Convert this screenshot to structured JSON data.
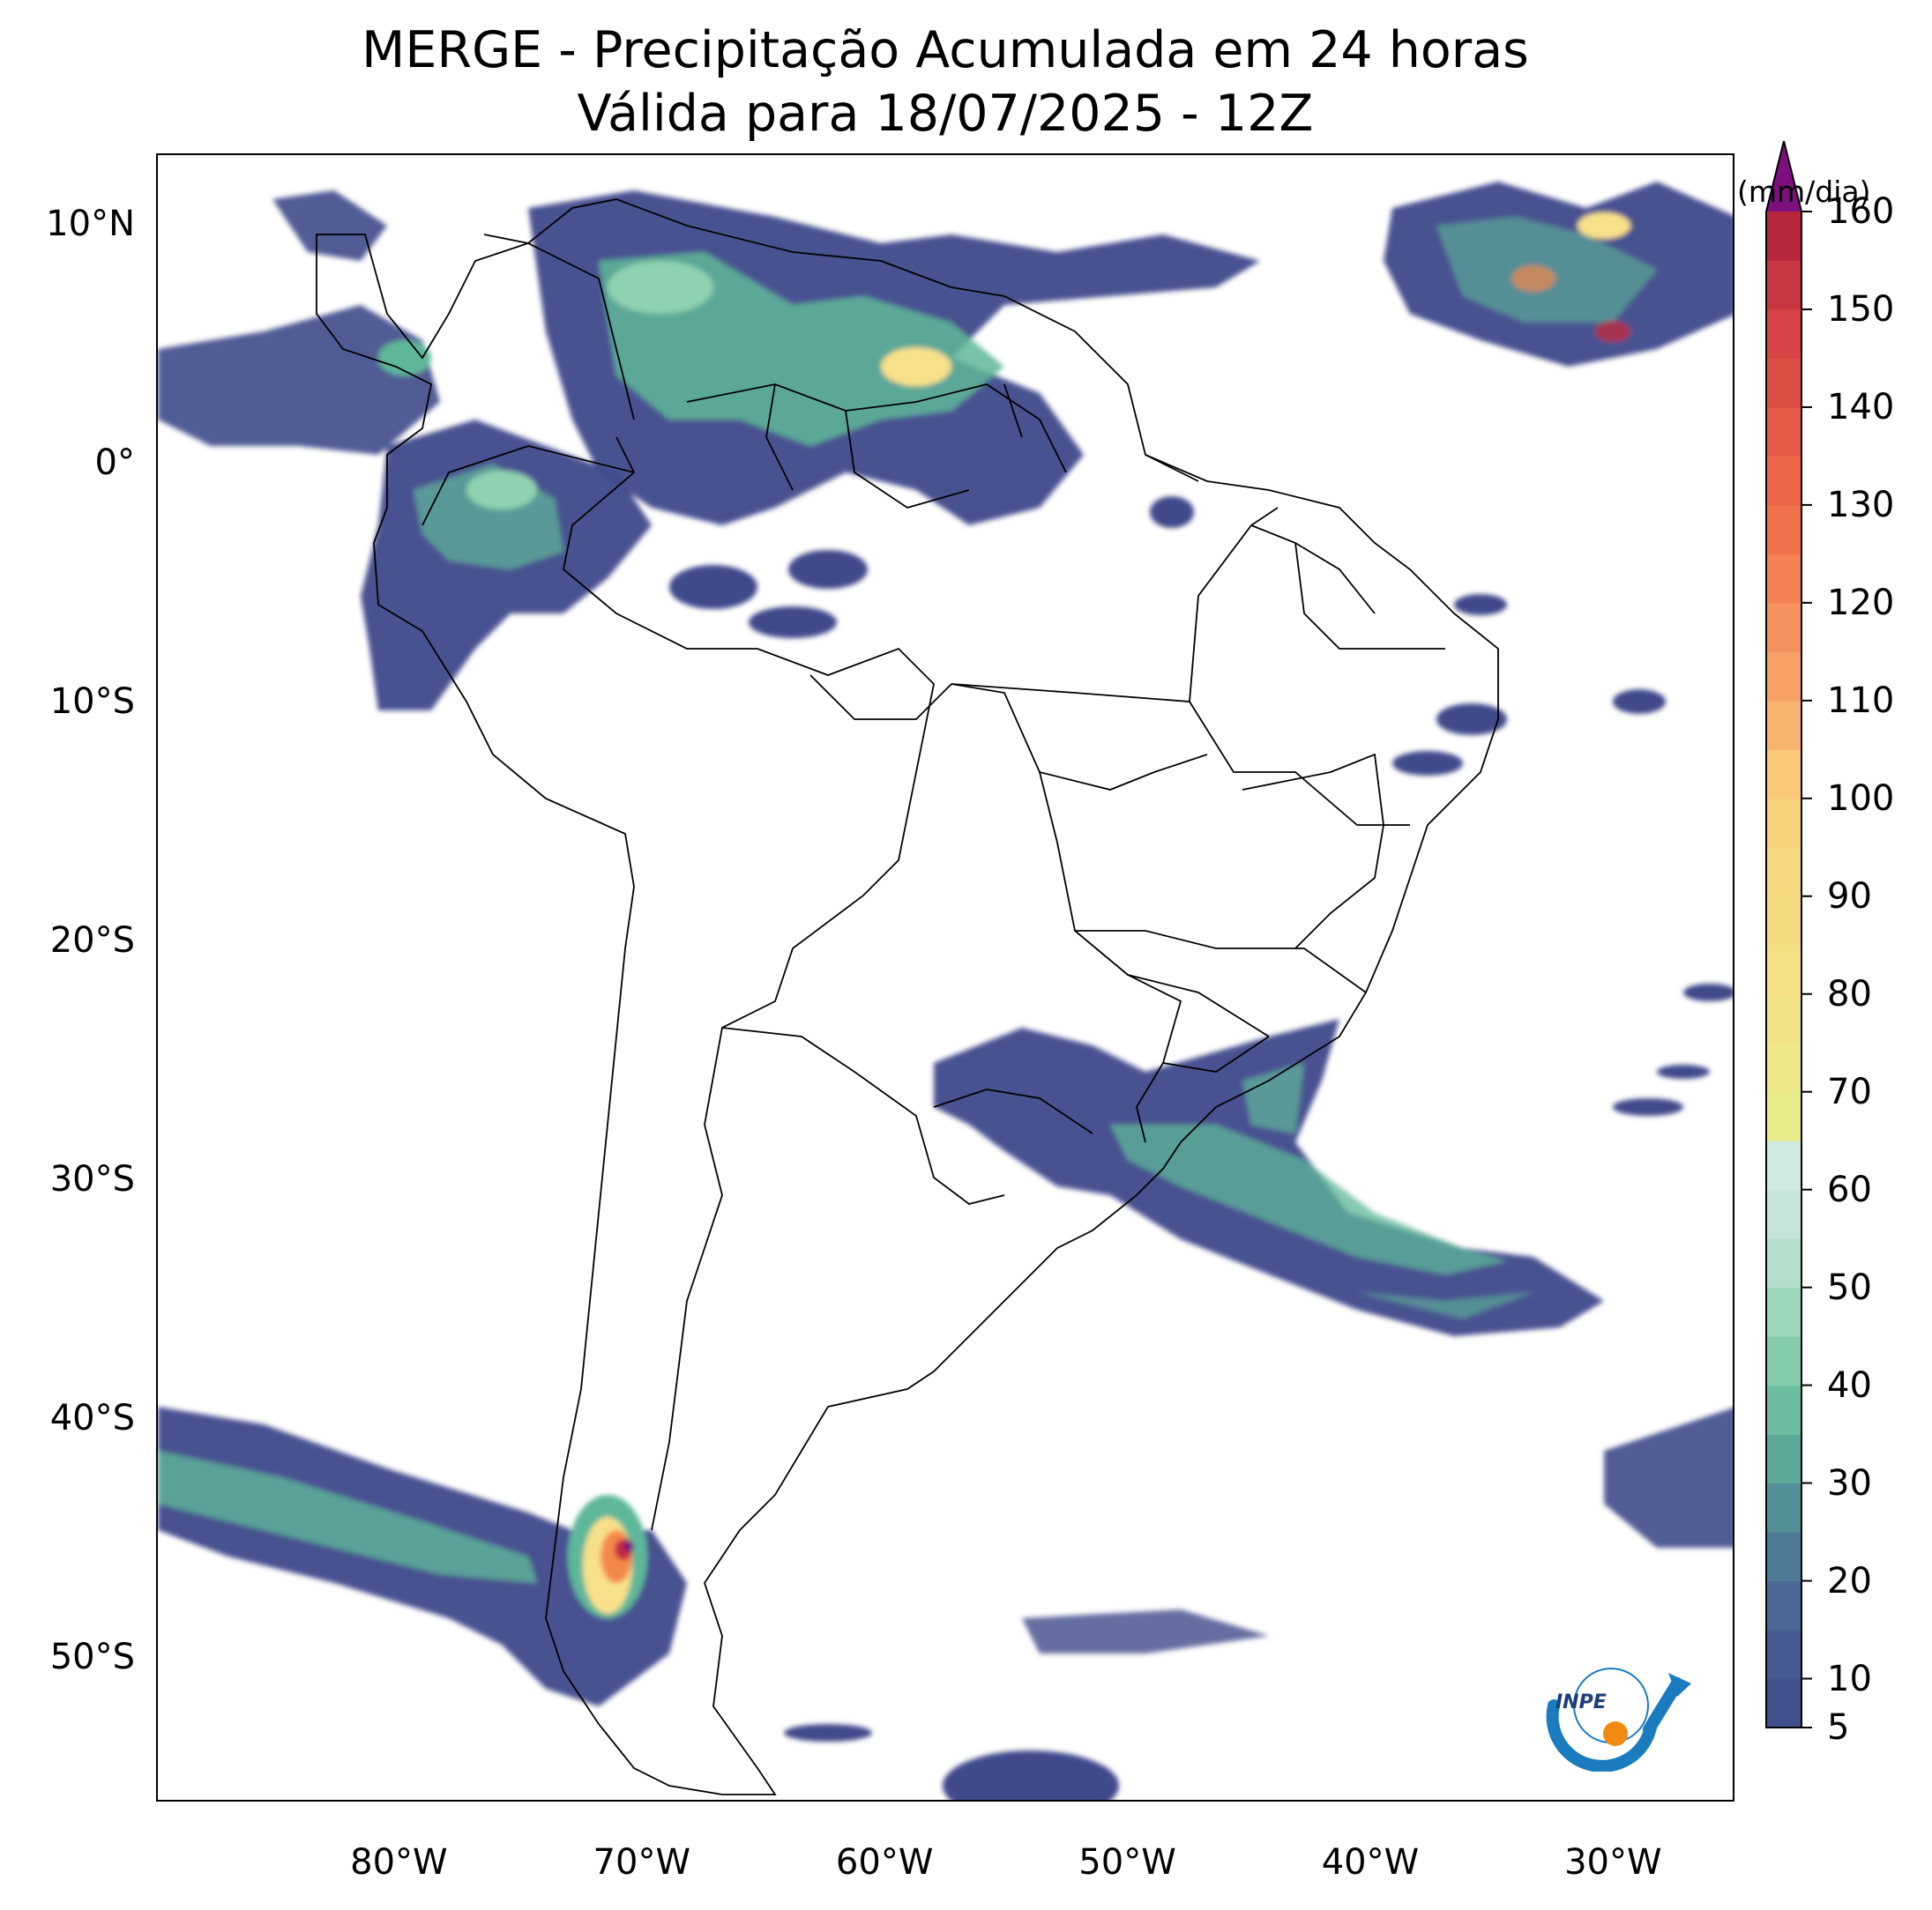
{
  "title": {
    "line1": "MERGE - Precipitação Acumulada em 24 horas",
    "line2": "Válida para 18/07/2025 - 12Z"
  },
  "axes": {
    "lat_labels": [
      "10°N",
      "0°",
      "10°S",
      "20°S",
      "30°S",
      "40°S",
      "50°S"
    ],
    "lon_labels": [
      "80°W",
      "70°W",
      "60°W",
      "50°W",
      "40°W",
      "30°W"
    ],
    "lat_values": [
      10,
      0,
      -10,
      -20,
      -30,
      -40,
      -50
    ],
    "lon_values": [
      -80,
      -70,
      -60,
      -50,
      -40,
      -30
    ],
    "lon_range": [
      -90,
      -25
    ],
    "lat_range": [
      -56,
      13
    ]
  },
  "colorbar": {
    "unit": "(mm/dia)",
    "tick_labels": [
      "5",
      "10",
      "20",
      "30",
      "40",
      "50",
      "60",
      "70",
      "80",
      "90",
      "100",
      "110",
      "120",
      "130",
      "140",
      "150",
      "160"
    ],
    "tick_values": [
      5,
      10,
      20,
      30,
      40,
      50,
      60,
      70,
      80,
      90,
      100,
      110,
      120,
      130,
      140,
      150,
      160
    ],
    "extend": "max",
    "colors": {
      "low": "#3f4a8a",
      "mid": "#5fb79a",
      "light": "#d7ece3",
      "yellow": "#f8e08a",
      "orange": "#f4884c",
      "red": "#c12a40",
      "extend": "#7e0f7e"
    }
  },
  "logo": {
    "text": "INPE"
  }
}
